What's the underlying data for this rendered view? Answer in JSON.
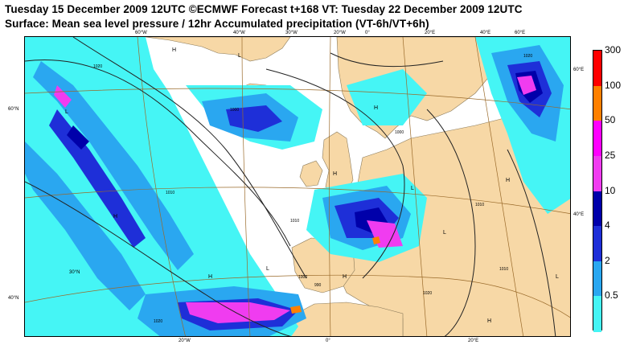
{
  "title": {
    "line1": "Tuesday 15 December 2009 12UTC ©ECMWF Forecast t+168 VT: Tuesday 22 December 2009 12UTC",
    "line2": "Surface: Mean sea level pressure / 12hr Accumulated precipitation (VT-6h/VT+6h)"
  },
  "colors": {
    "ocean": "#ffffff",
    "land": "#f7d8a6",
    "coast": "#8a7a5a",
    "grid": "#9a6a2a",
    "isobar": "#222222",
    "precip_levels": [
      "#45f5f5",
      "#2aa7f0",
      "#1e2fd8",
      "#0000aa",
      "#f03cf0",
      "#ff00ff",
      "#ff8000",
      "#ff0000"
    ]
  },
  "legend": {
    "values": [
      "300",
      "100",
      "50",
      "25",
      "10",
      "4",
      "2",
      "0.5"
    ],
    "units_label": ""
  },
  "graticule_labels": {
    "top": [
      "60°W",
      "40°W",
      "30°W",
      "20°W",
      "0°",
      "20°E",
      "40°E",
      "60°E"
    ],
    "bottom": [
      "20°W",
      "0°",
      "20°E"
    ],
    "left": [
      "60°N",
      "40°N"
    ],
    "right": [
      "60°E",
      "40°E"
    ],
    "inner": [
      "30°N"
    ]
  },
  "pressure_centers": [
    "H",
    "H",
    "H",
    "H",
    "H",
    "L",
    "L",
    "L",
    "H",
    "H",
    "L",
    "L",
    "H",
    "L"
  ],
  "isobar_labels": [
    "1020",
    "1000",
    "1010",
    "1000",
    "1000",
    "990",
    "1010",
    "1020",
    "1020",
    "1010",
    "1020",
    "1010"
  ]
}
